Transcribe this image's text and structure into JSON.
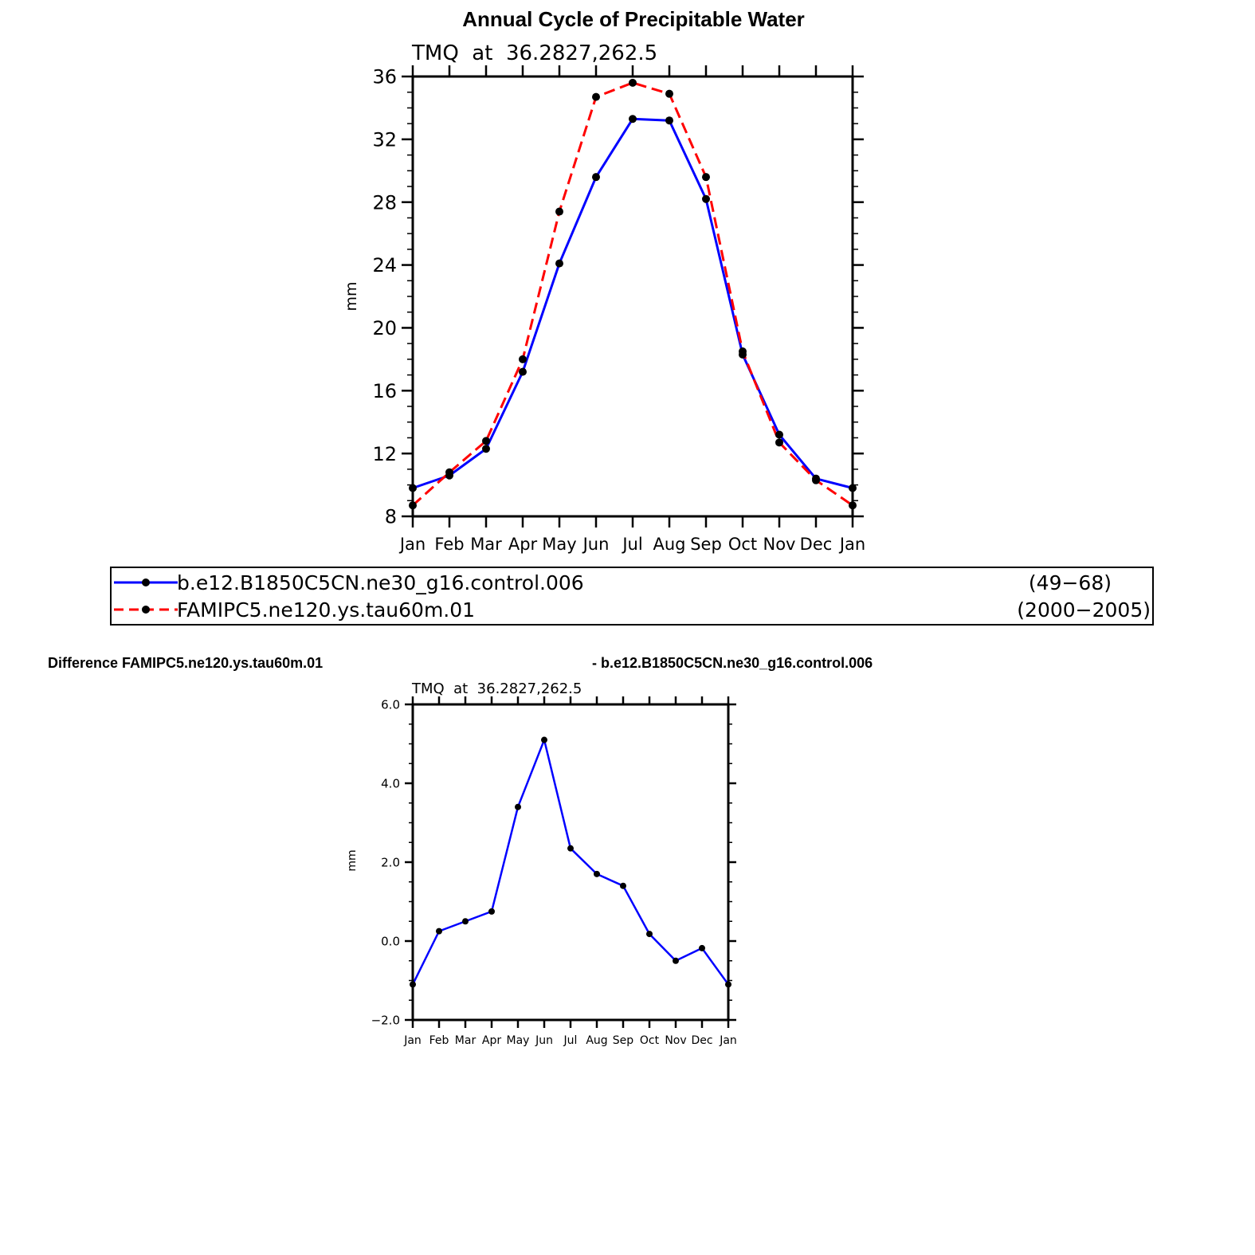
{
  "chart_data": [
    {
      "type": "line",
      "title": "Annual Cycle of Precipitable Water",
      "subtitle": "TMQ  at  36.2827,262.5",
      "xlabel": "",
      "ylabel": "mm",
      "ylim": [
        8,
        36
      ],
      "yticks": [
        "8",
        "12",
        "16",
        "20",
        "24",
        "28",
        "32",
        "36"
      ],
      "categories": [
        "Jan",
        "Feb",
        "Mar",
        "Apr",
        "May",
        "Jun",
        "Jul",
        "Aug",
        "Sep",
        "Oct",
        "Nov",
        "Dec",
        "Jan"
      ],
      "series": [
        {
          "name": "b.e12.B1850C5CN.ne30_g16.control.006",
          "period": "(49−68)",
          "color": "#0000ff",
          "dash": "solid",
          "values": [
            9.8,
            10.6,
            12.3,
            17.2,
            24.1,
            29.6,
            33.3,
            33.2,
            28.2,
            18.3,
            13.2,
            10.4,
            9.8
          ]
        },
        {
          "name": "FAMIPC5.ne120.ys.tau60m.01",
          "period": "(2000−2005)",
          "color": "#ff0000",
          "dash": "dashed",
          "values": [
            8.7,
            10.8,
            12.8,
            18.0,
            27.4,
            34.7,
            35.6,
            34.9,
            29.6,
            18.5,
            12.7,
            10.3,
            8.7
          ]
        }
      ]
    },
    {
      "type": "line",
      "title_left": "Difference FAMIPC5.ne120.ys.tau60m.01",
      "title_right": "- b.e12.B1850C5CN.ne30_g16.control.006",
      "subtitle": "TMQ  at  36.2827,262.5",
      "xlabel": "",
      "ylabel": "mm",
      "ylim": [
        -2.0,
        6.0
      ],
      "yticks": [
        "−2.0",
        "0.0",
        "2.0",
        "4.0",
        "6.0"
      ],
      "categories": [
        "Jan",
        "Feb",
        "Mar",
        "Apr",
        "May",
        "Jun",
        "Jul",
        "Aug",
        "Sep",
        "Oct",
        "Nov",
        "Dec",
        "Jan"
      ],
      "series": [
        {
          "name": "difference",
          "color": "#0000ff",
          "dash": "solid",
          "values": [
            -1.1,
            0.25,
            0.5,
            0.75,
            3.4,
            5.1,
            2.35,
            1.7,
            1.4,
            0.18,
            -0.5,
            -0.18,
            -1.1
          ]
        }
      ]
    }
  ]
}
